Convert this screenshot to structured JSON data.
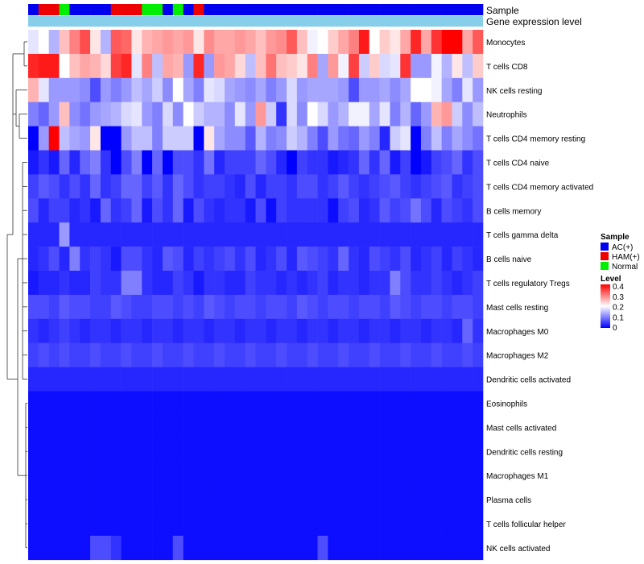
{
  "chart_data": {
    "type": "heatmap",
    "annotations": {
      "sample_label": "Sample",
      "expression_label": "Gene expression level",
      "expression_color": "#87ceeb"
    },
    "sample_groups": [
      "AC",
      "HAM",
      "HAM",
      "NORM",
      "AC",
      "AC",
      "AC",
      "AC",
      "HAM",
      "HAM",
      "HAM",
      "NORM",
      "NORM",
      "AC",
      "NORM",
      "AC",
      "HAM",
      "AC",
      "AC",
      "AC",
      "AC",
      "AC",
      "AC",
      "AC",
      "AC",
      "AC",
      "AC",
      "AC",
      "AC",
      "AC",
      "AC",
      "AC",
      "AC",
      "AC",
      "AC",
      "AC",
      "AC",
      "AC",
      "AC",
      "AC",
      "AC",
      "AC",
      "AC",
      "AC"
    ],
    "rows": [
      {
        "name": "Monocytes",
        "values": [
          0.18,
          0.2,
          0.14,
          0.25,
          0.3,
          0.34,
          0.22,
          0.14,
          0.33,
          0.32,
          0.22,
          0.26,
          0.27,
          0.28,
          0.27,
          0.28,
          0.22,
          0.29,
          0.27,
          0.27,
          0.28,
          0.27,
          0.25,
          0.28,
          0.29,
          0.33,
          0.25,
          0.19,
          0.2,
          0.24,
          0.27,
          0.3,
          0.38,
          0.2,
          0.24,
          0.22,
          0.27,
          0.37,
          0.27,
          0.36,
          0.4,
          0.4,
          0.27,
          0.33
        ]
      },
      {
        "name": "T cells CD8",
        "values": [
          0.37,
          0.38,
          0.38,
          0.2,
          0.25,
          0.27,
          0.26,
          0.23,
          0.35,
          0.37,
          0.18,
          0.3,
          0.15,
          0.27,
          0.26,
          0.12,
          0.37,
          0.12,
          0.28,
          0.27,
          0.23,
          0.15,
          0.25,
          0.31,
          0.25,
          0.24,
          0.22,
          0.3,
          0.13,
          0.28,
          0.19,
          0.35,
          0.16,
          0.24,
          0.17,
          0.18,
          0.36,
          0.12,
          0.12,
          0.19,
          0.14,
          0.22,
          0.15,
          0.24
        ]
      },
      {
        "name": "NK cells resting",
        "values": [
          0.26,
          0.18,
          0.12,
          0.12,
          0.12,
          0.11,
          0.06,
          0.12,
          0.1,
          0.12,
          0.15,
          0.13,
          0.16,
          0.11,
          0.2,
          0.13,
          0.1,
          0.18,
          0.17,
          0.13,
          0.12,
          0.11,
          0.13,
          0.1,
          0.12,
          0.17,
          0.12,
          0.13,
          0.13,
          0.13,
          0.12,
          0.06,
          0.12,
          0.12,
          0.13,
          0.11,
          0.13,
          0.2,
          0.2,
          0.19,
          0.13,
          0.1,
          0.18,
          0.12
        ]
      },
      {
        "name": "Neutrophils",
        "values": [
          0.1,
          0.08,
          0.12,
          0.25,
          0.11,
          0.09,
          0.12,
          0.13,
          0.14,
          0.17,
          0.18,
          0.12,
          0.1,
          0.17,
          0.11,
          0.2,
          0.16,
          0.14,
          0.14,
          0.11,
          0.18,
          0.12,
          0.28,
          0.16,
          0.04,
          0.17,
          0.11,
          0.2,
          0.17,
          0.12,
          0.14,
          0.19,
          0.19,
          0.13,
          0.18,
          0.1,
          0.14,
          0.08,
          0.12,
          0.26,
          0.28,
          0.16,
          0.11,
          0.15
        ]
      },
      {
        "name": "T cells CD4 memory resting",
        "values": [
          0.0,
          0.12,
          0.4,
          0.15,
          0.13,
          0.12,
          0.22,
          0.0,
          0.0,
          0.12,
          0.15,
          0.15,
          0.1,
          0.16,
          0.16,
          0.16,
          0.0,
          0.22,
          0.13,
          0.11,
          0.11,
          0.07,
          0.14,
          0.1,
          0.11,
          0.16,
          0.14,
          0.1,
          0.06,
          0.12,
          0.09,
          0.08,
          0.12,
          0.1,
          0.03,
          0.16,
          0.18,
          0.0,
          0.1,
          0.15,
          0.1,
          0.13,
          0.11,
          0.09
        ]
      },
      {
        "name": "T cells CD4 naive",
        "values": [
          0.02,
          0.04,
          0.02,
          0.08,
          0.03,
          0.08,
          0.1,
          0.04,
          0.0,
          0.06,
          0.1,
          0.0,
          0.08,
          0.0,
          0.06,
          0.06,
          0.04,
          0.09,
          0.03,
          0.05,
          0.05,
          0.05,
          0.08,
          0.06,
          0.03,
          0.0,
          0.05,
          0.04,
          0.04,
          0.02,
          0.03,
          0.04,
          0.08,
          0.04,
          0.08,
          0.02,
          0.05,
          0.0,
          0.02,
          0.05,
          0.06,
          0.08,
          0.04,
          0.06
        ]
      },
      {
        "name": "T cells CD4 memory activated",
        "values": [
          0.05,
          0.07,
          0.06,
          0.04,
          0.06,
          0.04,
          0.08,
          0.04,
          0.05,
          0.08,
          0.08,
          0.05,
          0.07,
          0.04,
          0.08,
          0.06,
          0.04,
          0.05,
          0.05,
          0.04,
          0.03,
          0.06,
          0.03,
          0.05,
          0.05,
          0.04,
          0.06,
          0.06,
          0.04,
          0.05,
          0.07,
          0.05,
          0.04,
          0.05,
          0.06,
          0.07,
          0.05,
          0.04,
          0.05,
          0.06,
          0.07,
          0.04,
          0.05,
          0.06
        ]
      },
      {
        "name": "B cells memory",
        "values": [
          0.06,
          0.03,
          0.05,
          0.05,
          0.03,
          0.04,
          0.02,
          0.08,
          0.04,
          0.05,
          0.08,
          0.02,
          0.06,
          0.04,
          0.08,
          0.02,
          0.06,
          0.04,
          0.03,
          0.04,
          0.04,
          0.02,
          0.06,
          0.01,
          0.05,
          0.04,
          0.04,
          0.04,
          0.04,
          0.01,
          0.05,
          0.06,
          0.03,
          0.04,
          0.07,
          0.05,
          0.06,
          0.09,
          0.06,
          0.03,
          0.06,
          0.05,
          0.04,
          0.06
        ]
      },
      {
        "name": "T cells gamma delta",
        "values": [
          0.03,
          0.03,
          0.03,
          0.12,
          0.03,
          0.03,
          0.03,
          0.03,
          0.03,
          0.03,
          0.03,
          0.03,
          0.03,
          0.03,
          0.03,
          0.03,
          0.03,
          0.03,
          0.03,
          0.03,
          0.03,
          0.03,
          0.03,
          0.03,
          0.03,
          0.03,
          0.03,
          0.03,
          0.03,
          0.03,
          0.03,
          0.03,
          0.03,
          0.03,
          0.03,
          0.03,
          0.03,
          0.03,
          0.03,
          0.03,
          0.03,
          0.03,
          0.03,
          0.03
        ]
      },
      {
        "name": "B cells naive",
        "values": [
          0.03,
          0.04,
          0.06,
          0.03,
          0.1,
          0.04,
          0.05,
          0.04,
          0.02,
          0.06,
          0.06,
          0.04,
          0.03,
          0.07,
          0.06,
          0.03,
          0.05,
          0.04,
          0.05,
          0.06,
          0.04,
          0.06,
          0.03,
          0.04,
          0.06,
          0.03,
          0.07,
          0.06,
          0.05,
          0.04,
          0.08,
          0.04,
          0.03,
          0.06,
          0.05,
          0.04,
          0.06,
          0.03,
          0.04,
          0.05,
          0.03,
          0.05,
          0.04,
          0.03
        ]
      },
      {
        "name": "T cells regulatory  Tregs",
        "values": [
          0.02,
          0.03,
          0.03,
          0.04,
          0.03,
          0.03,
          0.05,
          0.04,
          0.04,
          0.1,
          0.1,
          0.04,
          0.03,
          0.03,
          0.05,
          0.04,
          0.02,
          0.04,
          0.04,
          0.03,
          0.03,
          0.05,
          0.04,
          0.04,
          0.03,
          0.04,
          0.03,
          0.04,
          0.05,
          0.03,
          0.04,
          0.04,
          0.03,
          0.04,
          0.04,
          0.1,
          0.06,
          0.04,
          0.04,
          0.05,
          0.04,
          0.03,
          0.04,
          0.05
        ]
      },
      {
        "name": "Mast cells resting",
        "values": [
          0.06,
          0.06,
          0.05,
          0.07,
          0.06,
          0.06,
          0.05,
          0.05,
          0.07,
          0.06,
          0.05,
          0.05,
          0.06,
          0.06,
          0.05,
          0.06,
          0.05,
          0.07,
          0.06,
          0.05,
          0.06,
          0.06,
          0.05,
          0.06,
          0.06,
          0.05,
          0.07,
          0.06,
          0.05,
          0.06,
          0.06,
          0.05,
          0.06,
          0.06,
          0.05,
          0.07,
          0.06,
          0.05,
          0.06,
          0.06,
          0.05,
          0.06,
          0.06,
          0.05
        ]
      },
      {
        "name": "Macrophages M0",
        "values": [
          0.04,
          0.03,
          0.04,
          0.05,
          0.04,
          0.03,
          0.04,
          0.04,
          0.03,
          0.04,
          0.04,
          0.03,
          0.04,
          0.04,
          0.03,
          0.04,
          0.04,
          0.03,
          0.04,
          0.04,
          0.03,
          0.04,
          0.04,
          0.03,
          0.04,
          0.04,
          0.03,
          0.04,
          0.04,
          0.03,
          0.04,
          0.04,
          0.03,
          0.04,
          0.04,
          0.03,
          0.04,
          0.04,
          0.03,
          0.04,
          0.04,
          0.03,
          0.08,
          0.04
        ]
      },
      {
        "name": "Macrophages M2",
        "values": [
          0.05,
          0.06,
          0.05,
          0.06,
          0.05,
          0.05,
          0.06,
          0.05,
          0.05,
          0.06,
          0.05,
          0.05,
          0.06,
          0.05,
          0.05,
          0.06,
          0.05,
          0.05,
          0.06,
          0.05,
          0.05,
          0.06,
          0.05,
          0.05,
          0.06,
          0.05,
          0.05,
          0.06,
          0.05,
          0.05,
          0.06,
          0.05,
          0.05,
          0.06,
          0.05,
          0.05,
          0.06,
          0.05,
          0.05,
          0.06,
          0.05,
          0.05,
          0.06,
          0.05
        ]
      },
      {
        "name": "Dendritic cells activated",
        "values": [
          0.03,
          0.03,
          0.03,
          0.03,
          0.03,
          0.03,
          0.03,
          0.03,
          0.03,
          0.03,
          0.03,
          0.03,
          0.03,
          0.03,
          0.03,
          0.03,
          0.03,
          0.03,
          0.03,
          0.03,
          0.03,
          0.03,
          0.03,
          0.03,
          0.03,
          0.03,
          0.03,
          0.03,
          0.03,
          0.03,
          0.03,
          0.03,
          0.03,
          0.03,
          0.03,
          0.03,
          0.03,
          0.03,
          0.03,
          0.03,
          0.03,
          0.03,
          0.03,
          0.03
        ]
      },
      {
        "name": "Eosinophils",
        "values": [
          0.01,
          0.01,
          0.01,
          0.01,
          0.01,
          0.01,
          0.01,
          0.01,
          0.01,
          0.01,
          0.01,
          0.01,
          0.01,
          0.01,
          0.01,
          0.01,
          0.01,
          0.01,
          0.01,
          0.01,
          0.01,
          0.01,
          0.01,
          0.01,
          0.01,
          0.01,
          0.01,
          0.01,
          0.01,
          0.01,
          0.01,
          0.01,
          0.01,
          0.01,
          0.01,
          0.01,
          0.01,
          0.01,
          0.01,
          0.01,
          0.01,
          0.01,
          0.01,
          0.01
        ]
      },
      {
        "name": "Mast cells activated",
        "values": [
          0.01,
          0.01,
          0.01,
          0.01,
          0.01,
          0.01,
          0.01,
          0.01,
          0.01,
          0.01,
          0.01,
          0.01,
          0.01,
          0.01,
          0.01,
          0.01,
          0.01,
          0.01,
          0.01,
          0.01,
          0.01,
          0.01,
          0.01,
          0.01,
          0.01,
          0.01,
          0.01,
          0.01,
          0.01,
          0.01,
          0.01,
          0.01,
          0.01,
          0.01,
          0.01,
          0.01,
          0.01,
          0.01,
          0.01,
          0.01,
          0.01,
          0.01,
          0.01,
          0.01
        ]
      },
      {
        "name": "Dendritic cells resting",
        "values": [
          0.01,
          0.01,
          0.01,
          0.01,
          0.01,
          0.01,
          0.01,
          0.01,
          0.01,
          0.01,
          0.01,
          0.01,
          0.01,
          0.01,
          0.01,
          0.01,
          0.01,
          0.01,
          0.01,
          0.01,
          0.01,
          0.01,
          0.01,
          0.01,
          0.01,
          0.01,
          0.01,
          0.01,
          0.01,
          0.01,
          0.01,
          0.01,
          0.01,
          0.01,
          0.01,
          0.01,
          0.01,
          0.01,
          0.01,
          0.01,
          0.01,
          0.01,
          0.01,
          0.01
        ]
      },
      {
        "name": "Macrophages M1",
        "values": [
          0.01,
          0.01,
          0.01,
          0.01,
          0.01,
          0.01,
          0.01,
          0.01,
          0.01,
          0.01,
          0.01,
          0.01,
          0.01,
          0.01,
          0.01,
          0.01,
          0.01,
          0.01,
          0.01,
          0.01,
          0.01,
          0.01,
          0.01,
          0.01,
          0.01,
          0.01,
          0.01,
          0.01,
          0.01,
          0.01,
          0.01,
          0.01,
          0.01,
          0.01,
          0.01,
          0.01,
          0.01,
          0.01,
          0.01,
          0.01,
          0.01,
          0.01,
          0.01,
          0.01
        ]
      },
      {
        "name": "Plasma cells",
        "values": [
          0.01,
          0.01,
          0.01,
          0.01,
          0.01,
          0.01,
          0.01,
          0.01,
          0.01,
          0.01,
          0.01,
          0.01,
          0.01,
          0.01,
          0.01,
          0.01,
          0.01,
          0.01,
          0.01,
          0.01,
          0.01,
          0.01,
          0.01,
          0.01,
          0.01,
          0.01,
          0.01,
          0.01,
          0.01,
          0.01,
          0.01,
          0.01,
          0.01,
          0.01,
          0.01,
          0.01,
          0.01,
          0.01,
          0.01,
          0.01,
          0.01,
          0.01,
          0.01,
          0.01
        ]
      },
      {
        "name": "T cells follicular helper",
        "values": [
          0.01,
          0.01,
          0.01,
          0.01,
          0.01,
          0.01,
          0.01,
          0.01,
          0.01,
          0.01,
          0.01,
          0.01,
          0.01,
          0.01,
          0.01,
          0.01,
          0.01,
          0.01,
          0.01,
          0.01,
          0.01,
          0.01,
          0.01,
          0.01,
          0.01,
          0.01,
          0.01,
          0.01,
          0.01,
          0.01,
          0.01,
          0.01,
          0.01,
          0.01,
          0.01,
          0.01,
          0.01,
          0.01,
          0.01,
          0.01,
          0.01,
          0.01,
          0.01,
          0.01
        ]
      },
      {
        "name": "NK cells activated",
        "values": [
          0.01,
          0.01,
          0.01,
          0.01,
          0.01,
          0.01,
          0.06,
          0.06,
          0.04,
          0.01,
          0.01,
          0.01,
          0.01,
          0.01,
          0.06,
          0.01,
          0.01,
          0.01,
          0.01,
          0.01,
          0.01,
          0.01,
          0.01,
          0.01,
          0.01,
          0.01,
          0.01,
          0.01,
          0.06,
          0.01,
          0.01,
          0.01,
          0.01,
          0.01,
          0.01,
          0.01,
          0.01,
          0.01,
          0.01,
          0.01,
          0.01,
          0.01,
          0.01,
          0.01
        ]
      }
    ],
    "color_scale": {
      "min": 0,
      "mid": 0.2,
      "max": 0.4,
      "low": "#0000ff",
      "midcolor": "#ffffff",
      "high": "#ff0000"
    },
    "legend": {
      "sample_title": "Sample",
      "groups": [
        {
          "key": "AC",
          "label": "AC(+)",
          "color": "#0000ee"
        },
        {
          "key": "HAM",
          "label": "HAM(+)",
          "color": "#ee0000"
        },
        {
          "key": "NORM",
          "label": "Normal",
          "color": "#00ee00"
        }
      ],
      "level_title": "Level",
      "level_ticks": [
        "0.4",
        "0.3",
        "0.2",
        "0.1",
        "0"
      ],
      "placement": "right"
    }
  }
}
